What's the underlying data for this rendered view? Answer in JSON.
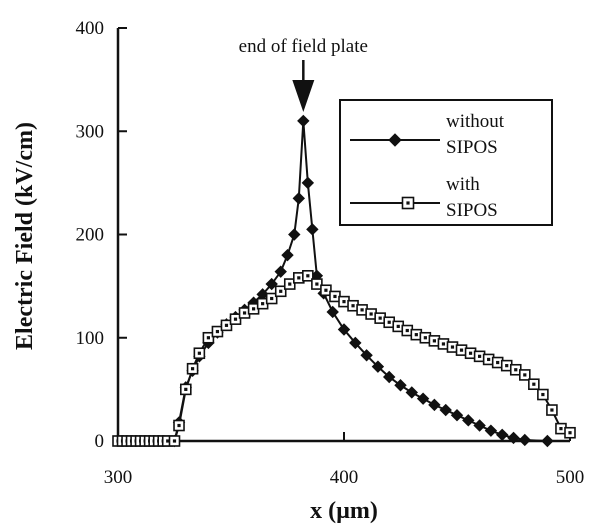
{
  "chart_data": {
    "type": "line",
    "title": "",
    "xlabel": "x (µm)",
    "ylabel": "Electric Field (kV/cm)",
    "xlim": [
      300,
      500
    ],
    "ylim": [
      0,
      400
    ],
    "x_ticks": [
      "300",
      "400",
      "500"
    ],
    "y_ticks": [
      "0",
      "100",
      "200",
      "300",
      "400"
    ],
    "grid": false,
    "legend_position": "upper-right",
    "annotation": {
      "text": "end of field plate",
      "x": 382
    },
    "series": [
      {
        "name": "without SIPOS",
        "marker": "diamond-filled",
        "x": [
          325,
          327,
          330,
          333,
          336,
          340,
          344,
          348,
          352,
          356,
          360,
          364,
          368,
          372,
          375,
          378,
          380,
          382,
          384,
          386,
          388,
          391,
          395,
          400,
          405,
          410,
          415,
          420,
          425,
          430,
          435,
          440,
          445,
          450,
          455,
          460,
          465,
          470,
          475,
          480,
          490
        ],
        "y": [
          0,
          18,
          52,
          68,
          82,
          95,
          105,
          113,
          120,
          127,
          134,
          142,
          152,
          164,
          180,
          200,
          235,
          310,
          250,
          205,
          160,
          143,
          125,
          108,
          95,
          83,
          72,
          62,
          54,
          47,
          41,
          35,
          30,
          25,
          20,
          15,
          10,
          6,
          3,
          1,
          0
        ]
      },
      {
        "name": "with SIPOS",
        "marker": "square-open",
        "x": [
          300,
          302,
          304,
          306,
          308,
          310,
          312,
          314,
          316,
          318,
          320,
          322,
          325,
          327,
          330,
          333,
          336,
          340,
          344,
          348,
          352,
          356,
          360,
          364,
          368,
          372,
          376,
          380,
          384,
          388,
          392,
          396,
          400,
          404,
          408,
          412,
          416,
          420,
          424,
          428,
          432,
          436,
          440,
          444,
          448,
          452,
          456,
          460,
          464,
          468,
          472,
          476,
          480,
          484,
          488,
          492,
          496,
          500
        ],
        "y": [
          0,
          0,
          0,
          0,
          0,
          0,
          0,
          0,
          0,
          0,
          0,
          0,
          0,
          15,
          50,
          70,
          85,
          100,
          106,
          112,
          118,
          124,
          128,
          133,
          138,
          145,
          152,
          158,
          160,
          152,
          146,
          140,
          135,
          131,
          127,
          123,
          119,
          115,
          111,
          107,
          103,
          100,
          97,
          94,
          91,
          88,
          85,
          82,
          79,
          76,
          73,
          69,
          64,
          55,
          45,
          30,
          12,
          8
        ]
      }
    ]
  }
}
